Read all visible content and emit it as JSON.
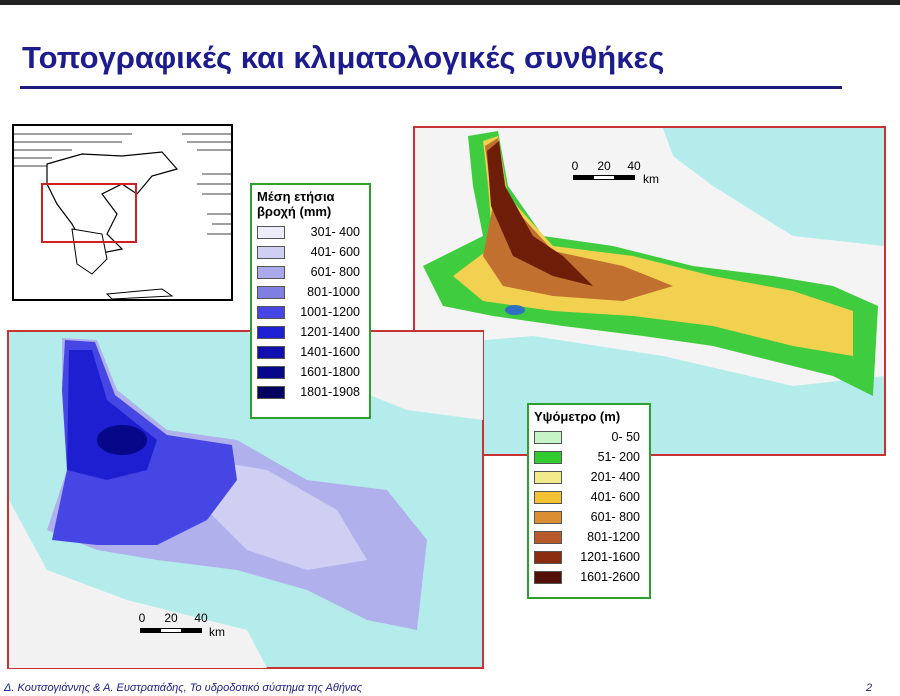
{
  "title": "Τοπογραφικές και κλιματολογικές συνθήκες",
  "rain_legend": {
    "title": "Μέση ετήσια βροχή (mm)",
    "entries": [
      {
        "label": "301- 400",
        "color": "#ececfa"
      },
      {
        "label": "401- 600",
        "color": "#cfcff4"
      },
      {
        "label": "601- 800",
        "color": "#a9a9ec"
      },
      {
        "label": "801-1000",
        "color": "#7f7fe2"
      },
      {
        "label": "1001-1200",
        "color": "#4646e4"
      },
      {
        "label": "1201-1400",
        "color": "#1f1fd2"
      },
      {
        "label": "1401-1600",
        "color": "#1010ae"
      },
      {
        "label": "1601-1800",
        "color": "#07078a"
      },
      {
        "label": "1801-1908",
        "color": "#03035e"
      }
    ]
  },
  "elevation_legend": {
    "title": "Υψόμετρο (m)",
    "entries": [
      {
        "label": "0-  50",
        "color": "#c6f4c6"
      },
      {
        "label": "51- 200",
        "color": "#2fcb2f"
      },
      {
        "label": "201- 400",
        "color": "#f3ea8c"
      },
      {
        "label": "401- 600",
        "color": "#f2c232"
      },
      {
        "label": "601- 800",
        "color": "#dc8e32"
      },
      {
        "label": "801-1200",
        "color": "#b95a2a"
      },
      {
        "label": "1201-1600",
        "color": "#8a2c10"
      },
      {
        "label": "1601-2600",
        "color": "#521006"
      }
    ]
  },
  "scale_bars": [
    {
      "ticks": [
        "0",
        "20",
        "40"
      ],
      "unit": "km"
    },
    {
      "ticks": [
        "0",
        "20",
        "40"
      ],
      "unit": "km"
    }
  ],
  "footer": {
    "authors": "Δ. Κουτσογιάννης & Α. Ευστρατιάδης, Το υδροδοτικό σύστημα της Αθήνας",
    "page": "2"
  }
}
